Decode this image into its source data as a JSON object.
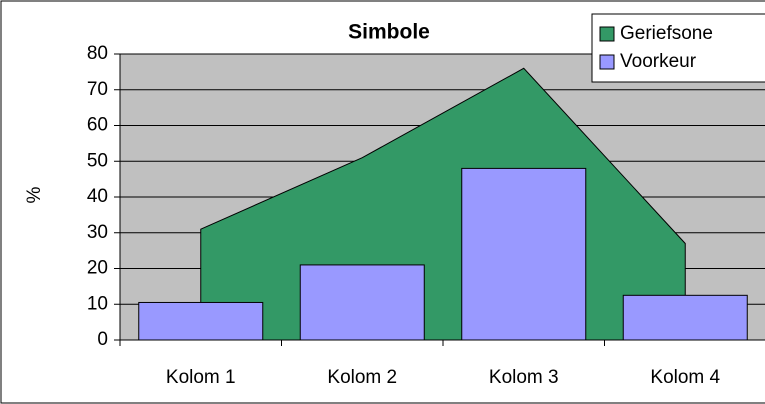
{
  "chart_data": {
    "type": "bar-area",
    "title": "Simbole",
    "ylabel": "%",
    "categories": [
      "Kolom 1",
      "Kolom 2",
      "Kolom 3",
      "Kolom 4"
    ],
    "series": [
      {
        "name": "Geriefsone",
        "type": "area",
        "color": "#339966",
        "values": [
          31,
          51,
          76,
          27
        ]
      },
      {
        "name": "Voorkeur",
        "type": "bar",
        "color": "#9999FF",
        "values": [
          10.5,
          21,
          48,
          12.5
        ]
      }
    ],
    "ylim": [
      0,
      80
    ],
    "yticks": [
      0,
      10,
      20,
      30,
      40,
      50,
      60,
      70,
      80
    ],
    "grid": true,
    "legend": "top-right"
  }
}
